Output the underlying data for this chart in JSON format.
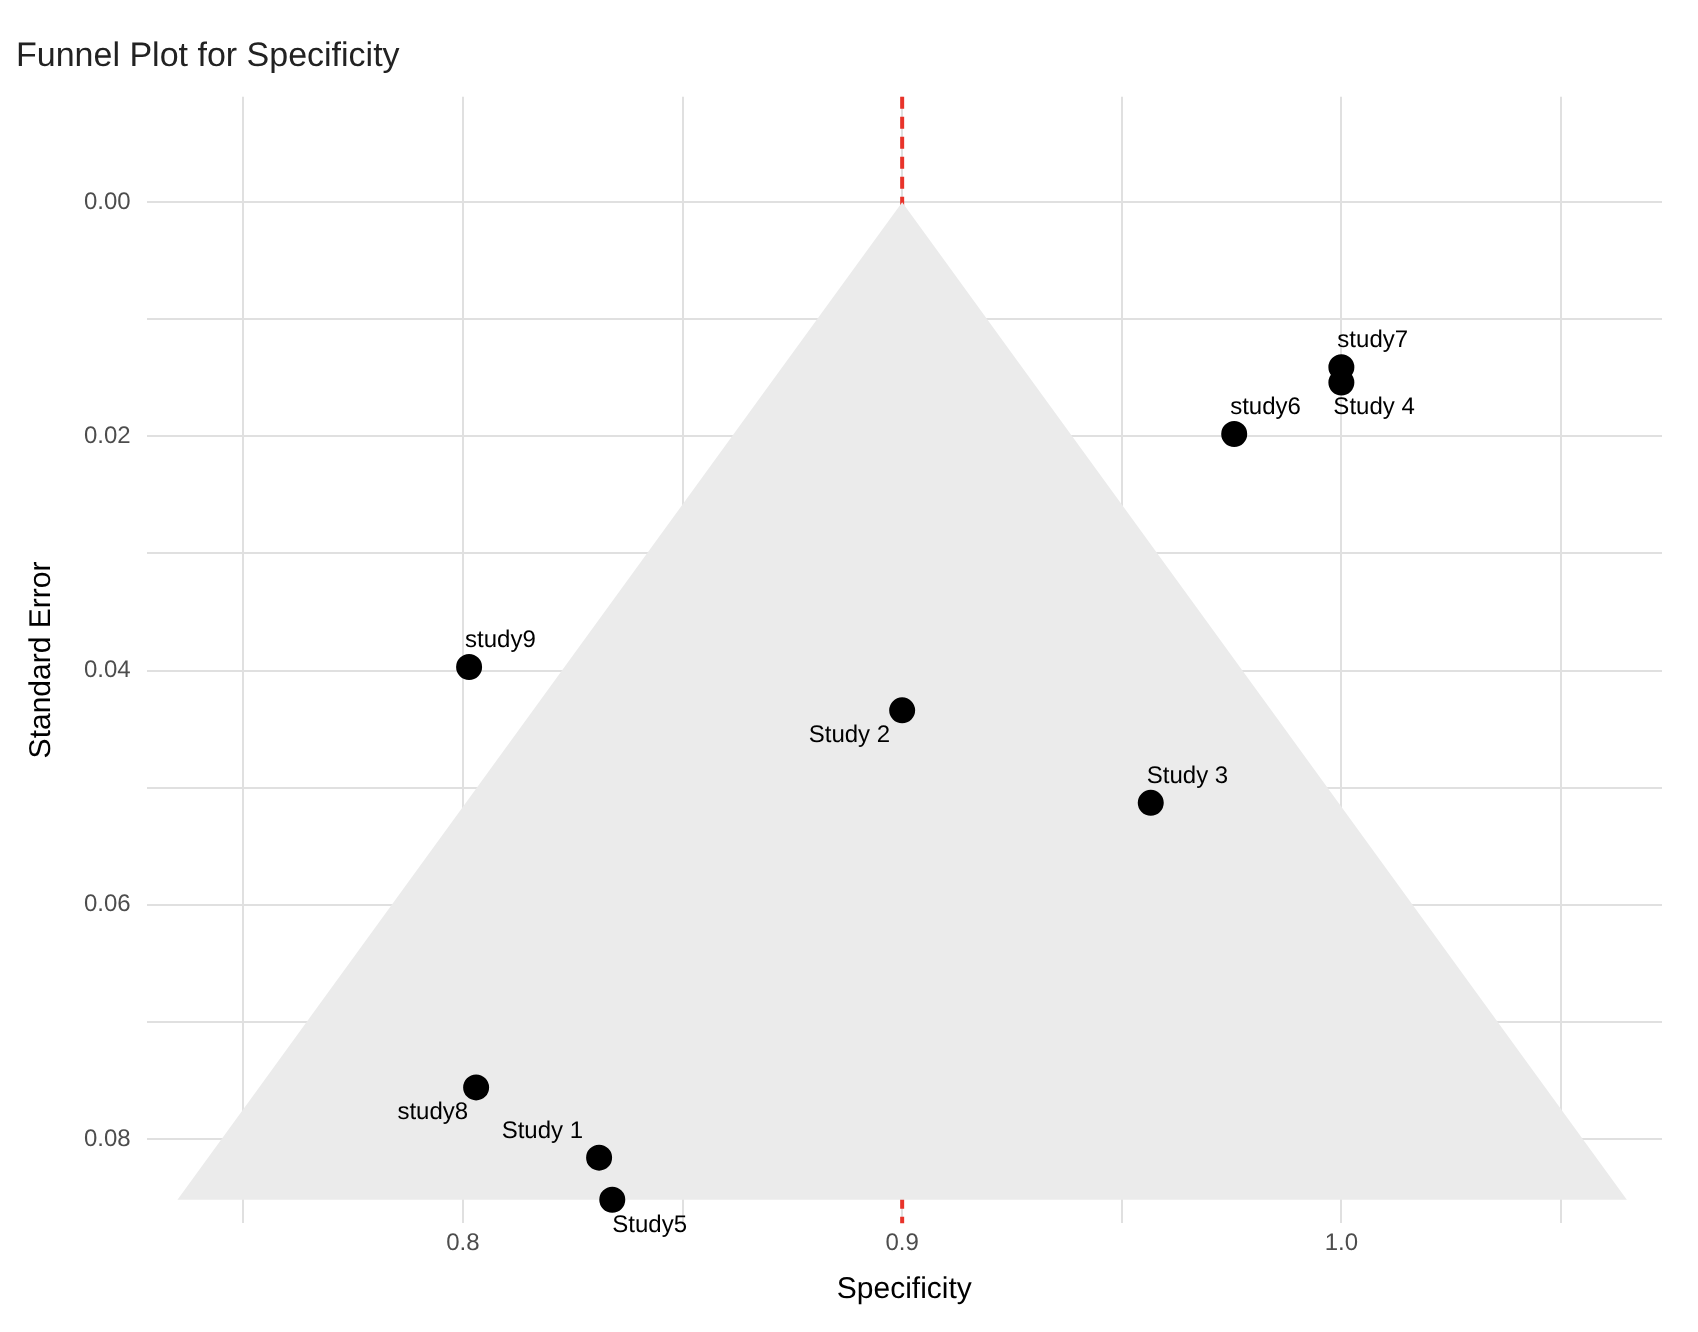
{
  "chart_data": {
    "type": "scatter",
    "title": "Funnel Plot for Specificity",
    "xlabel": "Specificity",
    "ylabel": "Standard Error",
    "xlim": [
      0.728,
      1.073
    ],
    "ylim": [
      0.0872,
      -0.009
    ],
    "xticks": [
      {
        "value": 0.75,
        "label": null
      },
      0.8,
      {
        "value": 0.85,
        "label": null
      },
      0.9,
      {
        "value": 0.95,
        "label": null
      },
      {
        "value": 1,
        "label": "1.0"
      },
      {
        "value": 1.05,
        "label": null
      }
    ],
    "yticks": [
      {
        "value": 0,
        "label": "0.00"
      },
      {
        "value": 0.01,
        "label": null
      },
      0.02,
      {
        "value": 0.03,
        "label": null
      },
      0.04,
      {
        "value": 0.05,
        "label": null
      },
      0.06,
      {
        "value": 0.07,
        "label": null
      },
      0.08
    ],
    "grid": true,
    "legend": false,
    "marker": "circle",
    "series": [
      {
        "type": "area",
        "marker": "none",
        "color": "#ebebeb",
        "x": [
          0.735,
          0.9,
          1.065
        ],
        "values": [
          0.0852,
          0,
          0.0852
        ]
      },
      {
        "color": "#000000",
        "x": [
          0.831,
          0.9,
          0.9566,
          1.0,
          0.834,
          0.9756,
          1.0,
          0.803,
          0.8014
        ],
        "values": [
          0.0816,
          0.0434,
          0.0513,
          0.0154,
          0.0852,
          0.0198,
          0.0141,
          0.0756,
          0.0397
        ]
      }
    ],
    "ref_lines": [
      {
        "axis": "x",
        "value": 0.9,
        "color": "#e8332a",
        "line_style": "dashed"
      }
    ],
    "annotations": [
      {
        "text": "Study 1",
        "x": 0.831,
        "y": 0.0816
      },
      {
        "text": "Study 2",
        "x": 0.9,
        "y": 0.0434
      },
      {
        "text": "Study 3",
        "x": 0.9566,
        "y": 0.0513
      },
      {
        "text": "Study 4",
        "x": 1.0,
        "y": 0.0154
      },
      {
        "text": "Study5",
        "x": 0.834,
        "y": 0.0852
      },
      {
        "text": "study6",
        "x": 0.9756,
        "y": 0.0198
      },
      {
        "text": "study7",
        "x": 1.0,
        "y": 0.0141
      },
      {
        "text": "study8",
        "x": 0.803,
        "y": 0.0756
      },
      {
        "text": "study9",
        "x": 0.8014,
        "y": 0.0397
      }
    ]
  }
}
